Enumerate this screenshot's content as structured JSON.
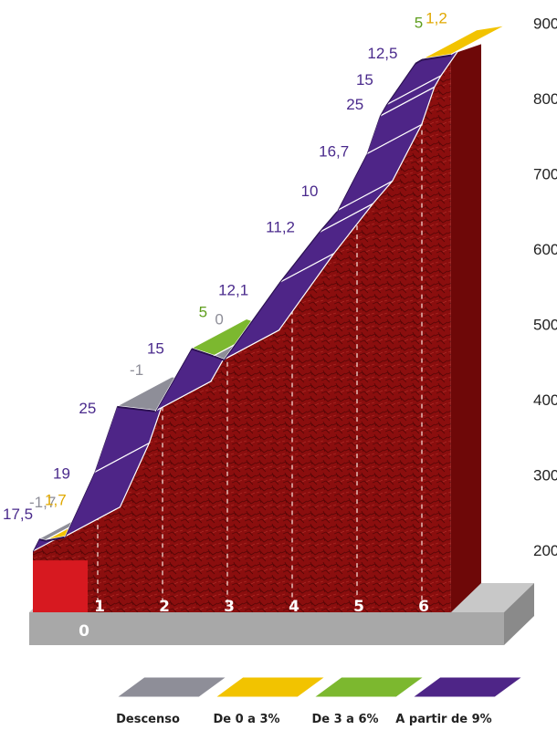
{
  "colors": {
    "descent": "#8e8e98",
    "easy": "#f2c300",
    "medium": "#7cb82f",
    "hard": "#4e2587",
    "hard_text": "#4a2a8c",
    "terrain": "#8b0e0e",
    "terrain_base": "#d71920",
    "ground": "#a8a8a8"
  },
  "chart_data": {
    "type": "area",
    "title": "",
    "xlabel": "",
    "ylabel": "",
    "ylim": [
      200,
      900
    ],
    "xlim": [
      0,
      6.6
    ],
    "x_ticks": [
      "0",
      "1",
      "2",
      "3",
      "4",
      "5",
      "6"
    ],
    "y_ticks": [
      "200",
      "300",
      "400",
      "500",
      "600",
      "700",
      "800",
      "900"
    ],
    "segments": [
      {
        "label": "17,5",
        "grade": 17.5,
        "category": "hard",
        "x0": 0.0,
        "x1": 0.1,
        "y0": 235,
        "y1": 252
      },
      {
        "label": "-1,7",
        "grade": -1.7,
        "category": "descent",
        "x0": 0.1,
        "x1": 0.2,
        "y0": 252,
        "y1": 250
      },
      {
        "label": "1,7",
        "grade": 1.7,
        "category": "easy",
        "x0": 0.2,
        "x1": 0.5,
        "y0": 250,
        "y1": 255
      },
      {
        "label": "19",
        "grade": 19,
        "category": "hard",
        "x0": 0.5,
        "x1": 0.95,
        "y0": 255,
        "y1": 340
      },
      {
        "label": "25",
        "grade": 25,
        "category": "hard",
        "x0": 0.95,
        "x1": 1.3,
        "y0": 340,
        "y1": 428
      },
      {
        "label": "-1",
        "grade": -1,
        "category": "descent",
        "x0": 1.3,
        "x1": 1.9,
        "y0": 428,
        "y1": 422
      },
      {
        "label": "15",
        "grade": 15,
        "category": "hard",
        "x0": 1.9,
        "x1": 2.45,
        "y0": 422,
        "y1": 505
      },
      {
        "label": "5",
        "grade": 5,
        "category": "medium",
        "x0": 2.45,
        "x1": 2.8,
        "y0": 505,
        "y1": 495
      },
      {
        "label": "0",
        "grade": 0,
        "category": "descent",
        "x0": 2.8,
        "x1": 2.95,
        "y0": 495,
        "y1": 490
      },
      {
        "label": "12,1",
        "grade": 12.1,
        "category": "hard",
        "x0": 2.95,
        "x1": 3.8,
        "y0": 490,
        "y1": 592
      },
      {
        "label": "11,2",
        "grade": 11.2,
        "category": "hard",
        "x0": 3.8,
        "x1": 4.4,
        "y0": 592,
        "y1": 658
      },
      {
        "label": "10",
        "grade": 10,
        "category": "hard",
        "x0": 4.4,
        "x1": 4.7,
        "y0": 658,
        "y1": 688
      },
      {
        "label": "16,7",
        "grade": 16.7,
        "category": "hard",
        "x0": 4.7,
        "x1": 5.15,
        "y0": 688,
        "y1": 763
      },
      {
        "label": "25",
        "grade": 25,
        "category": "hard",
        "x0": 5.15,
        "x1": 5.35,
        "y0": 763,
        "y1": 813
      },
      {
        "label": "15",
        "grade": 15,
        "category": "hard",
        "x0": 5.35,
        "x1": 5.45,
        "y0": 813,
        "y1": 828
      },
      {
        "label": "12,5",
        "grade": 12.5,
        "category": "hard",
        "x0": 5.45,
        "x1": 5.9,
        "y0": 828,
        "y1": 884
      },
      {
        "label": "5",
        "grade": 5,
        "category": "medium",
        "x0": 5.9,
        "x1": 6.0,
        "y0": 884,
        "y1": 889
      },
      {
        "label": "1,2",
        "grade": 1.2,
        "category": "easy",
        "x0": 6.0,
        "x1": 6.45,
        "y0": 889,
        "y1": 895
      }
    ],
    "legend": [
      {
        "category": "descent",
        "label": "Descenso"
      },
      {
        "category": "easy",
        "label": "De 0 a 3%"
      },
      {
        "category": "medium",
        "label": "De 3 a 6%"
      },
      {
        "category": "hard",
        "label": "A partir de 9%"
      }
    ],
    "legend_position": "bottom"
  }
}
